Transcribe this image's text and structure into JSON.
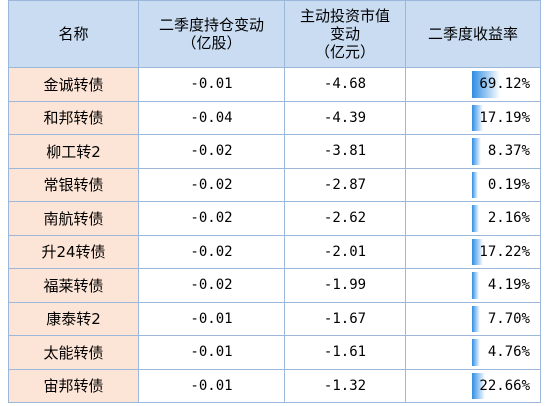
{
  "table": {
    "header": [
      [
        "名称"
      ],
      [
        "二季度持仓变动",
        "（亿股）"
      ],
      [
        "主动投资市值",
        "变动",
        "（亿元）"
      ],
      [
        "二季度收益率"
      ]
    ],
    "rows": [
      [
        "金诚转债",
        "-0.01",
        "-4.68",
        "69.12%"
      ],
      [
        "和邦转债",
        "-0.04",
        "-4.39",
        "17.19%"
      ],
      [
        "柳工转2",
        "-0.02",
        "-3.81",
        "8.37%"
      ],
      [
        "常银转债",
        "-0.02",
        "-2.87",
        "0.19%"
      ],
      [
        "南航转债",
        "-0.02",
        "-2.62",
        "2.16%"
      ],
      [
        "升24转债",
        "-0.02",
        "-2.01",
        "17.22%"
      ],
      [
        "福莱转债",
        "-0.02",
        "-1.99",
        "4.19%"
      ],
      [
        "康泰转2",
        "-0.01",
        "-1.67",
        "7.70%"
      ],
      [
        "太能转债",
        "-0.01",
        "-1.61",
        "4.76%"
      ],
      [
        "宙邦转债",
        "-0.01",
        "-1.32",
        "22.66%"
      ]
    ]
  }
}
